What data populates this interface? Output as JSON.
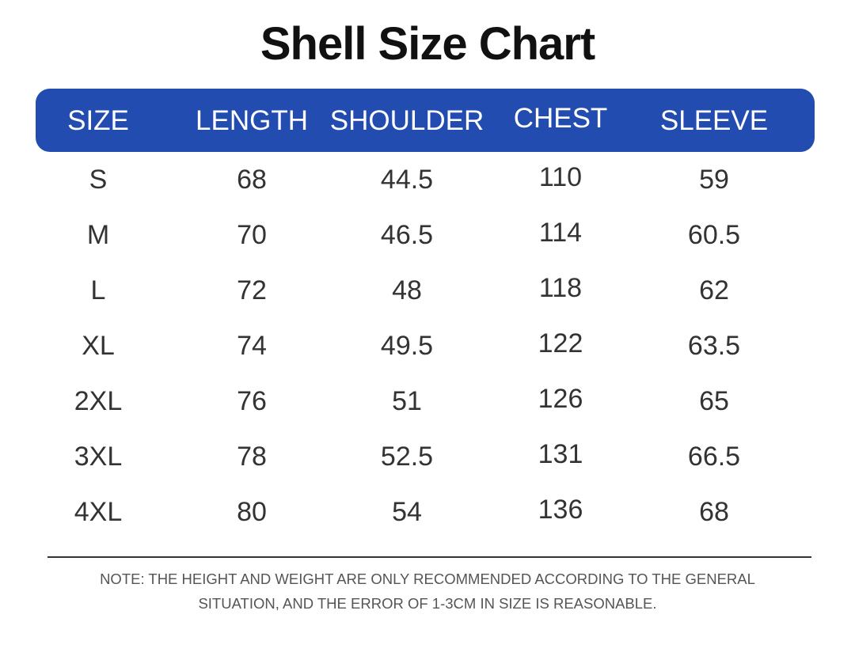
{
  "title": "Shell Size Chart",
  "colors": {
    "header_bg": "#234cb0",
    "header_text": "#ffffff",
    "body_text": "#333333"
  },
  "table": {
    "headers": [
      "SIZE",
      "LENGTH",
      "SHOULDER",
      "CHEST",
      "SLEEVE"
    ],
    "rows": [
      [
        "S",
        "68",
        "44.5",
        "110",
        "59"
      ],
      [
        "M",
        "70",
        "46.5",
        "114",
        "60.5"
      ],
      [
        "L",
        "72",
        "48",
        "118",
        "62"
      ],
      [
        "XL",
        "74",
        "49.5",
        "122",
        "63.5"
      ],
      [
        "2XL",
        "76",
        "51",
        "126",
        "65"
      ],
      [
        "3XL",
        "78",
        "52.5",
        "131",
        "66.5"
      ],
      [
        "4XL",
        "80",
        "54",
        "136",
        "68"
      ]
    ]
  },
  "note": {
    "line1": "NOTE: THE HEIGHT AND WEIGHT ARE ONLY RECOMMENDED ACCORDING TO THE GENERAL",
    "line2": "SITUATION, AND THE ERROR OF 1-3CM IN SIZE IS REASONABLE."
  }
}
